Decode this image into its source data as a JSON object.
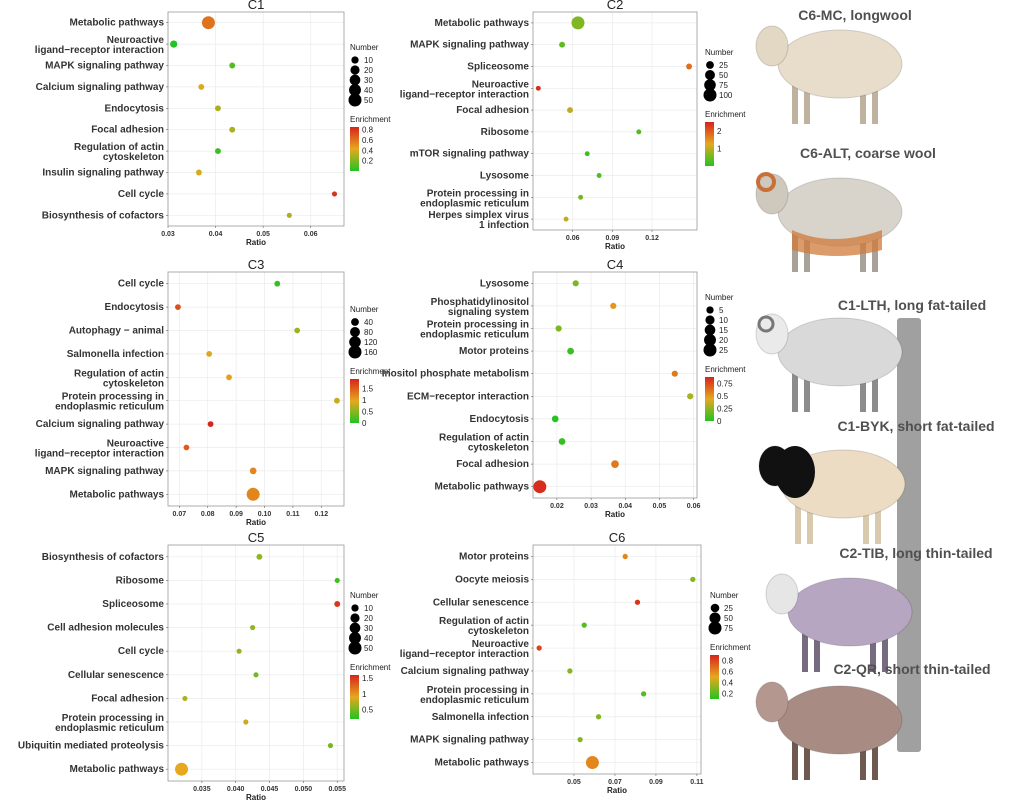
{
  "chart_data": [
    {
      "type": "scatter",
      "title": "C1",
      "xlabel": "Ratio",
      "categories": [
        "Metabolic pathways",
        "Neuroactive ligand−receptor interaction",
        "MAPK signaling pathway",
        "Calcium signaling pathway",
        "Endocytosis",
        "Focal adhesion",
        "Regulation of actin cytoskeleton",
        "Insulin signaling pathway",
        "Cell cycle",
        "Biosynthesis of cofactors"
      ],
      "x": [
        0.0385,
        0.0312,
        0.0435,
        0.037,
        0.0405,
        0.0435,
        0.0405,
        0.0365,
        0.065,
        0.0555
      ],
      "number": [
        50,
        10,
        5,
        5,
        5,
        5,
        5,
        5,
        3,
        3
      ],
      "enrichment": [
        0.6,
        0.0,
        0.1,
        0.4,
        0.3,
        0.3,
        0.05,
        0.4,
        0.8,
        0.3
      ],
      "xlim": [
        0.03,
        0.067
      ],
      "xticks": [
        0.03,
        0.04,
        0.05,
        0.06
      ],
      "xtick_labels": [
        "0.03",
        "0.04",
        "0.05",
        "0.06"
      ],
      "legend": {
        "number_title": "Number",
        "number_values": [
          10,
          20,
          30,
          40,
          50
        ],
        "enrichment_title": "Enrichment",
        "enrichment_ticks": [
          0.2,
          0.4,
          0.6,
          0.8
        ],
        "enrichment_range": [
          0,
          0.85
        ]
      }
    },
    {
      "type": "scatter",
      "title": "C2",
      "xlabel": "Ratio",
      "categories": [
        "Metabolic pathways",
        "MAPK signaling pathway",
        "Spliceosome",
        "Neuroactive ligand−receptor interaction",
        "Focal adhesion",
        "Ribosome",
        "mTOR signaling pathway",
        "Lysosome",
        "Protein processing in endoplasmic reticulum",
        "Herpes simplex virus 1 infection"
      ],
      "x": [
        0.064,
        0.052,
        0.148,
        0.034,
        0.058,
        0.11,
        0.071,
        0.08,
        0.066,
        0.055
      ],
      "number": [
        100,
        10,
        10,
        5,
        10,
        5,
        5,
        5,
        5,
        5
      ],
      "enrichment": [
        0.6,
        0.4,
        1.8,
        2.4,
        1.0,
        0.3,
        0.2,
        0.3,
        0.5,
        1.0
      ],
      "xlim": [
        0.03,
        0.154
      ],
      "xticks": [
        0.06,
        0.09,
        0.12
      ],
      "xtick_labels": [
        "0.06",
        "0.09",
        "0.12"
      ],
      "legend": {
        "number_title": "Number",
        "number_values": [
          25,
          50,
          75,
          100
        ],
        "enrichment_title": "Enrichment",
        "enrichment_ticks": [
          1,
          2
        ],
        "enrichment_range": [
          0,
          2.5
        ]
      }
    },
    {
      "type": "scatter",
      "title": "C3",
      "xlabel": "Ratio",
      "categories": [
        "Cell cycle",
        "Endocytosis",
        "Autophagy − animal",
        "Salmonella infection",
        "Regulation of actin cytoskeleton",
        "Protein processing in endoplasmic reticulum",
        "Calcium signaling pathway",
        "Neuroactive ligand−receptor interaction",
        "MAPK signaling pathway",
        "Metabolic pathways"
      ],
      "x": [
        0.1045,
        0.0695,
        0.1115,
        0.0805,
        0.0875,
        0.1255,
        0.081,
        0.0725,
        0.096,
        0.096
      ],
      "number": [
        15,
        15,
        15,
        15,
        15,
        15,
        15,
        15,
        25,
        160
      ],
      "enrichment": [
        0.1,
        1.6,
        0.6,
        0.9,
        1.0,
        0.8,
        2.0,
        1.5,
        1.2,
        1.2
      ],
      "xlim": [
        0.066,
        0.128
      ],
      "xticks": [
        0.07,
        0.08,
        0.09,
        0.1,
        0.11,
        0.12
      ],
      "xtick_labels": [
        "0.07",
        "0.08",
        "0.09",
        "0.10",
        "0.11",
        "0.12"
      ],
      "legend": {
        "number_title": "Number",
        "number_values": [
          40,
          80,
          120,
          160
        ],
        "enrichment_title": "Enrichment",
        "enrichment_ticks": [
          0.0,
          0.5,
          1.0,
          1.5
        ],
        "enrichment_range": [
          0,
          1.9
        ]
      }
    },
    {
      "type": "scatter",
      "title": "C4",
      "xlabel": "Ratio",
      "categories": [
        "Lysosome",
        "Phosphatidylinositol signaling system",
        "Protein processing in endoplasmic reticulum",
        "Motor proteins",
        "Inositol phosphate metabolism",
        "ECM−receptor interaction",
        "Endocytosis",
        "Regulation of actin cytoskeleton",
        "Focal adhesion",
        "Metabolic pathways"
      ],
      "x": [
        0.0255,
        0.0365,
        0.0205,
        0.024,
        0.0545,
        0.059,
        0.0195,
        0.0215,
        0.037,
        0.015
      ],
      "number": [
        3,
        3,
        3,
        4,
        3,
        3,
        4,
        4,
        6,
        25
      ],
      "enrichment": [
        0.2,
        0.5,
        0.2,
        0.05,
        0.6,
        0.3,
        0.0,
        0.05,
        0.6,
        0.85
      ],
      "xlim": [
        0.013,
        0.061
      ],
      "xticks": [
        0.02,
        0.03,
        0.04,
        0.05,
        0.06
      ],
      "xtick_labels": [
        "0.02",
        "0.03",
        "0.04",
        "0.05",
        "0.06"
      ],
      "legend": {
        "number_title": "Number",
        "number_values": [
          5,
          10,
          15,
          20,
          25
        ],
        "enrichment_title": "Enrichment",
        "enrichment_ticks": [
          0.0,
          0.25,
          0.5,
          0.75
        ],
        "enrichment_range": [
          0,
          0.88
        ]
      }
    },
    {
      "type": "scatter",
      "title": "C5",
      "xlabel": "Ratio",
      "categories": [
        "Biosynthesis of cofactors",
        "Ribosome",
        "Spliceosome",
        "Cell adhesion molecules",
        "Cell cycle",
        "Cellular senescence",
        "Focal adhesion",
        "Protein processing in endoplasmic reticulum",
        "Ubiquitin mediated proteolysis",
        "Metabolic pathways"
      ],
      "x": [
        0.0435,
        0.055,
        0.055,
        0.0425,
        0.0405,
        0.043,
        0.0325,
        0.0415,
        0.054,
        0.032
      ],
      "number": [
        5,
        3,
        5,
        3,
        3,
        3,
        3,
        3,
        3,
        50
      ],
      "enrichment": [
        0.6,
        0.3,
        1.5,
        0.6,
        0.6,
        0.5,
        0.7,
        0.8,
        0.5,
        0.9
      ],
      "xlim": [
        0.03,
        0.056
      ],
      "xticks": [
        0.035,
        0.04,
        0.045,
        0.05,
        0.055
      ],
      "xtick_labels": [
        "0.035",
        "0.040",
        "0.045",
        "0.050",
        "0.055"
      ],
      "legend": {
        "number_title": "Number",
        "number_values": [
          10,
          20,
          30,
          40,
          50
        ],
        "enrichment_title": "Enrichment",
        "enrichment_ticks": [
          0.5,
          1.0,
          1.5
        ],
        "enrichment_range": [
          0.2,
          1.6
        ]
      }
    },
    {
      "type": "scatter",
      "title": "C6",
      "xlabel": "Ratio",
      "categories": [
        "Motor proteins",
        "Oocyte meiosis",
        "Cellular senescence",
        "Regulation of actin cytoskeleton",
        "Neuroactive ligand−receptor interaction",
        "Calcium signaling pathway",
        "Protein processing in endoplasmic reticulum",
        "Salmonella infection",
        "MAPK signaling pathway",
        "Metabolic pathways"
      ],
      "x": [
        0.075,
        0.108,
        0.081,
        0.055,
        0.033,
        0.048,
        0.084,
        0.062,
        0.053,
        0.059
      ],
      "number": [
        5,
        5,
        5,
        5,
        5,
        5,
        5,
        5,
        5,
        75
      ],
      "enrichment": [
        0.6,
        0.3,
        0.85,
        0.2,
        0.8,
        0.3,
        0.2,
        0.3,
        0.3,
        0.6
      ],
      "xlim": [
        0.03,
        0.112
      ],
      "xticks": [
        0.05,
        0.07,
        0.09,
        0.11
      ],
      "xtick_labels": [
        "0.05",
        "0.07",
        "0.09",
        "0.11"
      ],
      "legend": {
        "number_title": "Number",
        "number_values": [
          25,
          50,
          75
        ],
        "enrichment_title": "Enrichment",
        "enrichment_ticks": [
          0.2,
          0.4,
          0.6,
          0.8
        ],
        "enrichment_range": [
          0.1,
          0.9
        ]
      }
    }
  ],
  "sheep": [
    {
      "caption": "C6-MC, longwool",
      "pattern": "longwool",
      "color": "#e9ddcc"
    },
    {
      "caption": "C6-ALT, coarse wool",
      "pattern": "coarse",
      "color": "#dedad2"
    },
    {
      "caption": "C1-LTH, long fat-tailed",
      "pattern": "longfat",
      "color": "#d9d9d9"
    },
    {
      "caption": "C1-BYK, short fat-tailed",
      "pattern": "blackhead",
      "color": "#ecdcc2"
    },
    {
      "caption": "C2-TIB, long thin-tailed",
      "pattern": "thin",
      "color": "#b8a8c4"
    },
    {
      "caption": "C2-QR, short thin-tailed",
      "pattern": "brown",
      "color": "#a88c84"
    }
  ],
  "colors": {
    "enrichment_low": "#22c322",
    "enrichment_mid": "#e6a81e",
    "enrichment_high": "#d6241c",
    "bracket": "#a0a0a0",
    "frame": "#999999"
  }
}
